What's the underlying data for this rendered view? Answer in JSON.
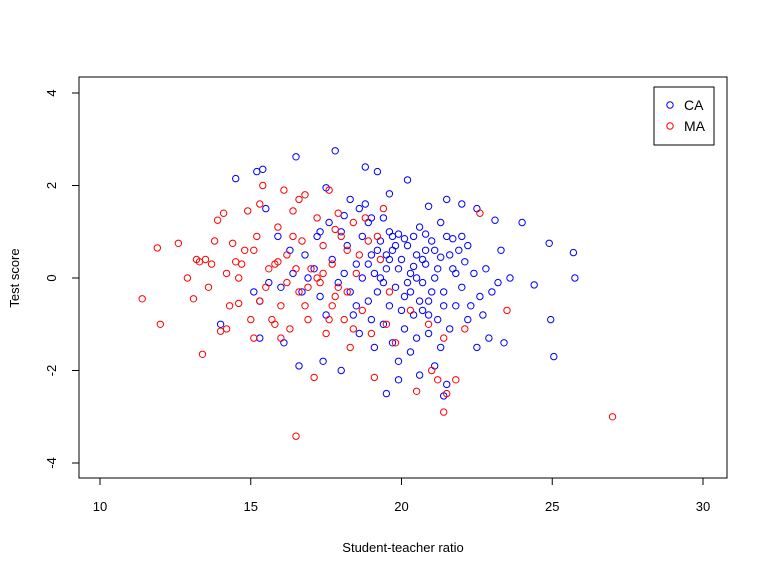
{
  "chart_data": {
    "type": "scatter",
    "title": "",
    "xlabel": "Student-teacher ratio",
    "ylabel": "Test score",
    "xlim": [
      10,
      30
    ],
    "ylim": [
      -4,
      4
    ],
    "xticks": [
      10,
      15,
      20,
      25,
      30
    ],
    "yticks": [
      -4,
      -2,
      0,
      2,
      4
    ],
    "xtick_labels": [
      "10",
      "15",
      "20",
      "25",
      "30"
    ],
    "ytick_labels": [
      "-4",
      "-2",
      "0",
      "2",
      "4"
    ],
    "grid": false,
    "legend_position": "top-right",
    "series": [
      {
        "name": "CA",
        "color": "#0000ff",
        "marker": "open-circle",
        "points": [
          [
            14.5,
            2.15
          ],
          [
            15.2,
            2.3
          ],
          [
            15.4,
            2.35
          ],
          [
            16.5,
            2.62
          ],
          [
            17.8,
            2.75
          ],
          [
            18.8,
            2.4
          ],
          [
            19.2,
            2.3
          ],
          [
            20.2,
            2.12
          ],
          [
            17.5,
            1.95
          ],
          [
            18.3,
            1.7
          ],
          [
            19.6,
            1.82
          ],
          [
            20.9,
            1.55
          ],
          [
            21.5,
            1.7
          ],
          [
            22.0,
            1.6
          ],
          [
            22.5,
            1.5
          ],
          [
            23.1,
            1.25
          ],
          [
            24.0,
            1.2
          ],
          [
            15.1,
            -0.3
          ],
          [
            15.3,
            -0.5
          ],
          [
            15.6,
            -0.1
          ],
          [
            16.0,
            -0.2
          ],
          [
            16.4,
            0.1
          ],
          [
            16.8,
            0.5
          ],
          [
            17.2,
            0.9
          ],
          [
            17.6,
            1.2
          ],
          [
            18.0,
            1.0
          ],
          [
            18.2,
            0.7
          ],
          [
            18.5,
            0.3
          ],
          [
            18.7,
            0.9
          ],
          [
            18.9,
            1.2
          ],
          [
            19.0,
            0.5
          ],
          [
            19.1,
            0.1
          ],
          [
            19.2,
            -0.3
          ],
          [
            19.3,
            0.8
          ],
          [
            19.4,
            1.3
          ],
          [
            19.5,
            0.2
          ],
          [
            19.6,
            -0.6
          ],
          [
            19.7,
            0.6
          ],
          [
            19.8,
            -0.2
          ],
          [
            19.9,
            0.95
          ],
          [
            20.0,
            0.4
          ],
          [
            20.1,
            -0.4
          ],
          [
            20.2,
            0.7
          ],
          [
            20.3,
            0.1
          ],
          [
            20.4,
            -0.8
          ],
          [
            20.5,
            0.5
          ],
          [
            20.6,
            1.1
          ],
          [
            20.7,
            -0.1
          ],
          [
            20.8,
            0.3
          ],
          [
            20.9,
            -0.5
          ],
          [
            21.0,
            0.8
          ],
          [
            21.1,
            0.0
          ],
          [
            21.2,
            -0.9
          ],
          [
            21.3,
            0.45
          ],
          [
            21.4,
            -0.3
          ],
          [
            21.5,
            0.9
          ],
          [
            21.6,
            -1.1
          ],
          [
            21.7,
            0.2
          ],
          [
            21.8,
            -0.6
          ],
          [
            21.9,
            0.6
          ],
          [
            22.0,
            -0.2
          ],
          [
            22.1,
            0.35
          ],
          [
            22.2,
            -0.9
          ],
          [
            22.4,
            0.1
          ],
          [
            22.6,
            -0.4
          ],
          [
            22.8,
            0.2
          ],
          [
            23.0,
            -0.3
          ],
          [
            23.3,
            0.6
          ],
          [
            23.6,
            0.0
          ],
          [
            24.4,
            -0.15
          ],
          [
            24.9,
            0.75
          ],
          [
            25.7,
            0.55
          ],
          [
            25.75,
            0.0
          ],
          [
            24.95,
            -0.9
          ],
          [
            25.05,
            -1.7
          ],
          [
            18.4,
            -0.8
          ],
          [
            18.6,
            -1.2
          ],
          [
            18.9,
            -0.5
          ],
          [
            19.1,
            -1.5
          ],
          [
            19.4,
            -1.0
          ],
          [
            19.7,
            -1.4
          ],
          [
            19.9,
            -1.8
          ],
          [
            20.1,
            -1.1
          ],
          [
            20.3,
            -1.6
          ],
          [
            20.5,
            -1.3
          ],
          [
            20.7,
            -0.7
          ],
          [
            20.9,
            -1.2
          ],
          [
            21.1,
            -1.9
          ],
          [
            21.3,
            -1.5
          ],
          [
            21.5,
            -2.3
          ],
          [
            21.4,
            -2.55
          ],
          [
            20.6,
            -2.1
          ],
          [
            19.9,
            -2.2
          ],
          [
            19.5,
            -2.5
          ],
          [
            18.0,
            -2.0
          ],
          [
            17.4,
            -1.8
          ],
          [
            16.6,
            -1.9
          ],
          [
            16.1,
            -1.4
          ],
          [
            15.3,
            -1.3
          ],
          [
            14.0,
            -1.0
          ],
          [
            22.5,
            -1.5
          ],
          [
            22.9,
            -1.3
          ],
          [
            23.4,
            -1.4
          ],
          [
            17.1,
            0.2
          ],
          [
            17.3,
            -0.4
          ],
          [
            17.5,
            -0.8
          ],
          [
            17.7,
            0.4
          ],
          [
            17.9,
            -0.1
          ],
          [
            18.1,
            0.1
          ],
          [
            18.3,
            -0.3
          ],
          [
            18.5,
            -0.6
          ],
          [
            18.7,
            0.0
          ],
          [
            18.9,
            0.3
          ],
          [
            19.0,
            -0.9
          ],
          [
            19.2,
            0.6
          ],
          [
            19.4,
            -0.1
          ],
          [
            19.6,
            0.4
          ],
          [
            19.8,
            0.7
          ],
          [
            20.0,
            -0.7
          ],
          [
            20.2,
            -0.1
          ],
          [
            20.4,
            0.25
          ],
          [
            20.6,
            -0.5
          ],
          [
            20.8,
            0.6
          ],
          [
            21.0,
            -0.3
          ],
          [
            21.2,
            0.2
          ],
          [
            21.4,
            -0.6
          ],
          [
            21.6,
            0.5
          ],
          [
            21.8,
            0.1
          ],
          [
            22.0,
            0.9
          ],
          [
            22.3,
            -0.6
          ],
          [
            22.7,
            -0.8
          ],
          [
            23.2,
            -0.1
          ],
          [
            19.3,
            0.0
          ],
          [
            19.5,
            0.5
          ],
          [
            19.7,
            0.9
          ],
          [
            19.9,
            0.2
          ],
          [
            20.1,
            0.85
          ],
          [
            20.3,
            -0.3
          ],
          [
            20.5,
            0.0
          ],
          [
            20.7,
            0.4
          ],
          [
            20.9,
            -0.8
          ],
          [
            21.1,
            0.6
          ],
          [
            18.6,
            1.5
          ],
          [
            18.8,
            1.6
          ],
          [
            19.6,
            1.0
          ],
          [
            20.4,
            0.9
          ],
          [
            20.8,
            0.95
          ],
          [
            21.7,
            0.85
          ],
          [
            22.2,
            0.7
          ],
          [
            21.3,
            1.2
          ],
          [
            19.0,
            1.3
          ],
          [
            18.1,
            1.35
          ],
          [
            17.3,
            1.0
          ],
          [
            16.9,
            0.0
          ],
          [
            16.7,
            -0.3
          ],
          [
            16.3,
            0.6
          ],
          [
            15.9,
            0.9
          ],
          [
            15.5,
            1.5
          ]
        ]
      },
      {
        "name": "MA",
        "color": "#ff0000",
        "marker": "open-circle",
        "points": [
          [
            11.4,
            -0.45
          ],
          [
            11.9,
            0.65
          ],
          [
            12.0,
            -1.0
          ],
          [
            12.6,
            0.75
          ],
          [
            13.1,
            -0.45
          ],
          [
            13.2,
            0.4
          ],
          [
            13.3,
            0.35
          ],
          [
            13.4,
            -1.65
          ],
          [
            13.5,
            0.4
          ],
          [
            13.7,
            0.3
          ],
          [
            13.9,
            1.25
          ],
          [
            14.0,
            -1.15
          ],
          [
            14.1,
            1.4
          ],
          [
            14.2,
            0.1
          ],
          [
            14.4,
            0.75
          ],
          [
            14.5,
            0.35
          ],
          [
            14.6,
            -0.55
          ],
          [
            14.8,
            0.6
          ],
          [
            14.9,
            1.45
          ],
          [
            15.0,
            -0.9
          ],
          [
            15.1,
            -1.3
          ],
          [
            15.2,
            0.9
          ],
          [
            15.3,
            1.6
          ],
          [
            15.4,
            2.0
          ],
          [
            15.5,
            -0.2
          ],
          [
            15.7,
            -0.9
          ],
          [
            15.8,
            0.3
          ],
          [
            15.9,
            1.1
          ],
          [
            16.0,
            -0.6
          ],
          [
            16.1,
            1.9
          ],
          [
            16.2,
            0.5
          ],
          [
            16.3,
            -1.1
          ],
          [
            16.4,
            1.45
          ],
          [
            16.5,
            -3.42
          ],
          [
            16.6,
            -0.3
          ],
          [
            16.7,
            0.8
          ],
          [
            16.8,
            1.8
          ],
          [
            16.9,
            -0.9
          ],
          [
            17.0,
            0.2
          ],
          [
            17.1,
            -2.15
          ],
          [
            17.2,
            1.3
          ],
          [
            17.3,
            -0.1
          ],
          [
            17.4,
            0.7
          ],
          [
            17.5,
            -1.2
          ],
          [
            17.6,
            1.9
          ],
          [
            17.7,
            0.3
          ],
          [
            17.8,
            -0.4
          ],
          [
            17.9,
            1.4
          ],
          [
            18.0,
            0.9
          ],
          [
            18.1,
            -0.9
          ],
          [
            18.2,
            0.6
          ],
          [
            18.3,
            -1.5
          ],
          [
            18.4,
            1.2
          ],
          [
            18.5,
            0.1
          ],
          [
            18.7,
            -0.7
          ],
          [
            18.9,
            0.8
          ],
          [
            19.1,
            -2.15
          ],
          [
            19.3,
            0.4
          ],
          [
            19.5,
            -1.0
          ],
          [
            20.5,
            -2.45
          ],
          [
            21.0,
            -2.0
          ],
          [
            21.2,
            -2.2
          ],
          [
            21.5,
            -2.5
          ],
          [
            21.8,
            -2.2
          ],
          [
            21.4,
            -2.9
          ],
          [
            27.0,
            -3.0
          ],
          [
            22.6,
            1.4
          ],
          [
            23.5,
            -0.7
          ],
          [
            12.9,
            0.0
          ],
          [
            13.6,
            -0.2
          ],
          [
            14.3,
            -0.6
          ],
          [
            15.6,
            0.2
          ],
          [
            16.2,
            -0.1
          ],
          [
            16.8,
            -0.6
          ],
          [
            17.4,
            0.1
          ],
          [
            17.9,
            -0.2
          ],
          [
            18.6,
            0.5
          ],
          [
            19.2,
            0.9
          ],
          [
            19.6,
            -0.3
          ],
          [
            16.6,
            1.7
          ],
          [
            17.2,
            0.0
          ],
          [
            15.8,
            -1.0
          ],
          [
            14.7,
            0.3
          ],
          [
            16.0,
            -1.3
          ],
          [
            17.6,
            -0.9
          ],
          [
            18.4,
            -1.1
          ],
          [
            19.0,
            -1.2
          ],
          [
            19.8,
            -1.4
          ],
          [
            20.3,
            -0.7
          ],
          [
            20.9,
            -1.0
          ],
          [
            21.4,
            -1.3
          ],
          [
            22.1,
            -1.1
          ],
          [
            14.2,
            -1.1
          ],
          [
            13.8,
            0.8
          ],
          [
            15.1,
            0.6
          ],
          [
            16.5,
            0.2
          ],
          [
            17.8,
            1.05
          ],
          [
            18.8,
            1.3
          ],
          [
            19.4,
            1.5
          ],
          [
            15.9,
            0.35
          ],
          [
            16.9,
            -0.2
          ],
          [
            17.7,
            -0.6
          ],
          [
            18.2,
            -0.3
          ],
          [
            16.4,
            0.9
          ],
          [
            15.3,
            -0.5
          ],
          [
            14.6,
            0.0
          ]
        ]
      }
    ]
  }
}
